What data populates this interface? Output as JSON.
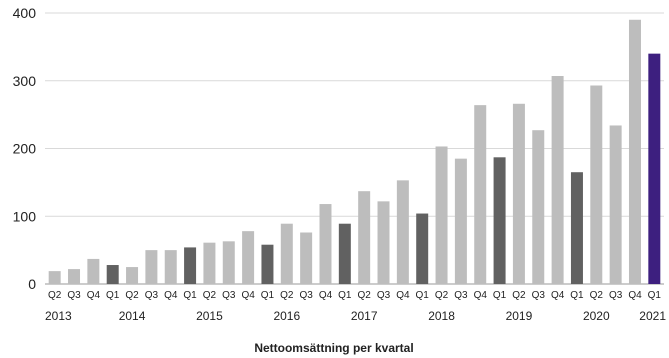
{
  "chart_data": {
    "type": "bar",
    "xlabel": "Nettoomsättning per kvartal",
    "ylim": [
      0,
      400
    ],
    "yticks": [
      0,
      100,
      200,
      300,
      400
    ],
    "grid": true,
    "colors": {
      "other": "#bdbdbd",
      "q1": "#616161",
      "latest": "#3d1f7f"
    },
    "categories": [
      "Q2",
      "Q3",
      "Q4",
      "Q1",
      "Q2",
      "Q3",
      "Q4",
      "Q1",
      "Q2",
      "Q3",
      "Q4",
      "Q1",
      "Q2",
      "Q3",
      "Q4",
      "Q1",
      "Q2",
      "Q3",
      "Q4",
      "Q1",
      "Q2",
      "Q3",
      "Q4",
      "Q1",
      "Q2",
      "Q3",
      "Q4",
      "Q1",
      "Q2",
      "Q3",
      "Q4",
      "Q1"
    ],
    "values": [
      19,
      22,
      37,
      28,
      25,
      50,
      50,
      54,
      61,
      63,
      78,
      58,
      89,
      76,
      118,
      89,
      137,
      122,
      153,
      104,
      203,
      185,
      264,
      187,
      266,
      227,
      307,
      165,
      293,
      234,
      390,
      340
    ],
    "years": [
      {
        "label": "2013",
        "index": 0
      },
      {
        "label": "2014",
        "index": 4.5
      },
      {
        "label": "2015",
        "index": 8.5
      },
      {
        "label": "2016",
        "index": 12.5
      },
      {
        "label": "2017",
        "index": 16.5
      },
      {
        "label": "2018",
        "index": 20.5
      },
      {
        "label": "2019",
        "index": 24.5
      },
      {
        "label": "2020",
        "index": 28.5
      },
      {
        "label": "2021",
        "index": 32.5
      }
    ]
  }
}
